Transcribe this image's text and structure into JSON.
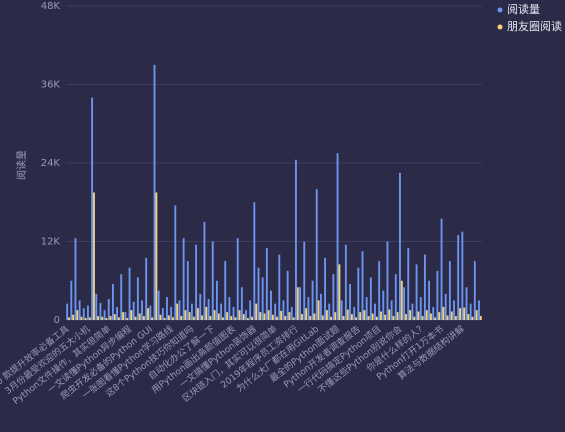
{
  "chart_data": {
    "type": "bar",
    "ylabel": "阅读量",
    "ylim": [
      0,
      48000
    ],
    "yticks": [
      0,
      {
        "value": 12000,
        "label": "12K"
      },
      {
        "value": 24000,
        "label": "24K"
      },
      {
        "value": 36000,
        "label": "36K"
      },
      {
        "value": 48000,
        "label": "48K"
      }
    ],
    "grid": true,
    "legend": "top-right",
    "categories": [
      "10 款提升效率必备工具",
      null,
      null,
      null,
      null,
      "3月份最受欢迎的五大小机",
      null,
      null,
      null,
      null,
      "Python文件操作，其实很简单",
      null,
      null,
      null,
      null,
      "一文读懂Python异步编程",
      null,
      null,
      null,
      null,
      "爬虫开发必备的Python GUI",
      null,
      null,
      null,
      null,
      "一张图看懂Python学习路线",
      null,
      null,
      null,
      null,
      "这8个Python技巧你知道吗",
      null,
      null,
      null,
      null,
      "自动化办公了解一下",
      null,
      null,
      null,
      null,
      "用Python画出高颜值图表",
      null,
      null,
      null,
      null,
      "一文搞懂Python装饰器",
      null,
      null,
      null,
      null,
      "区块链入门，其实可以很简单",
      null,
      null,
      null,
      null,
      "2019年程序员工资排行",
      null,
      null,
      null,
      null,
      "为什么大厂都在用GitLab",
      null,
      null,
      null,
      null,
      "最全的Python面试题",
      null,
      null,
      null,
      null,
      "Python开发者调查报告",
      null,
      null,
      null,
      null,
      "一行代码搞定Python项目",
      null,
      null,
      null,
      null,
      "不懂这些Python别说你会",
      null,
      null,
      null,
      null,
      "你是什么样的人?",
      null,
      null,
      null,
      null,
      "Python打开1万本书",
      null,
      null,
      null,
      null,
      "算法与数据结构讲解",
      null,
      null,
      null,
      null
    ],
    "series": [
      {
        "name": "阅读量",
        "color": "#6d95f0",
        "values": [
          2500,
          6000,
          12500,
          3000,
          1800,
          2200,
          34000,
          4000,
          2600,
          1500,
          3200,
          5500,
          2000,
          7000,
          1200,
          8000,
          2800,
          6500,
          3000,
          9500,
          2200,
          39000,
          4500,
          1800,
          3500,
          2000,
          17500,
          3000,
          12500,
          9000,
          2500,
          11500,
          4000,
          15000,
          3200,
          12000,
          6000,
          2500,
          9000,
          3500,
          2000,
          12500,
          5000,
          1500,
          3000,
          18000,
          8000,
          6500,
          11000,
          4500,
          2500,
          10000,
          3000,
          7500,
          2000,
          24500,
          5000,
          12000,
          3500,
          6000,
          20000,
          4000,
          9500,
          2500,
          7000,
          25500,
          3000,
          11500,
          5500,
          2000,
          8000,
          10500,
          3500,
          6500,
          2500,
          9000,
          4500,
          12000,
          3000,
          7000,
          22500,
          5000,
          11000,
          2500,
          8500,
          3500,
          10000,
          6000,
          2000,
          7500,
          15500,
          4000,
          9000,
          3000,
          13000,
          13500,
          5000,
          2500,
          9000,
          3000
        ]
      },
      {
        "name": "朋友圈阅读",
        "color": "#f2d27a",
        "values": [
          400,
          800,
          1500,
          500,
          300,
          400,
          19500,
          600,
          500,
          300,
          600,
          900,
          400,
          1200,
          300,
          1500,
          500,
          1000,
          600,
          1800,
          400,
          19500,
          800,
          300,
          700,
          400,
          2500,
          600,
          1500,
          1200,
          500,
          1800,
          700,
          2000,
          600,
          1500,
          1000,
          400,
          1200,
          600,
          400,
          1500,
          900,
          300,
          500,
          2500,
          1200,
          1000,
          1500,
          800,
          500,
          1400,
          600,
          1200,
          400,
          5000,
          900,
          1800,
          600,
          1000,
          3000,
          700,
          1500,
          500,
          1200,
          8500,
          600,
          1600,
          900,
          400,
          1200,
          1500,
          600,
          1000,
          500,
          1300,
          800,
          1600,
          600,
          1200,
          6000,
          900,
          1500,
          500,
          1300,
          600,
          1500,
          1000,
          400,
          1200,
          2000,
          700,
          1300,
          600,
          1800,
          1900,
          900,
          500,
          1500,
          600
        ]
      }
    ]
  }
}
